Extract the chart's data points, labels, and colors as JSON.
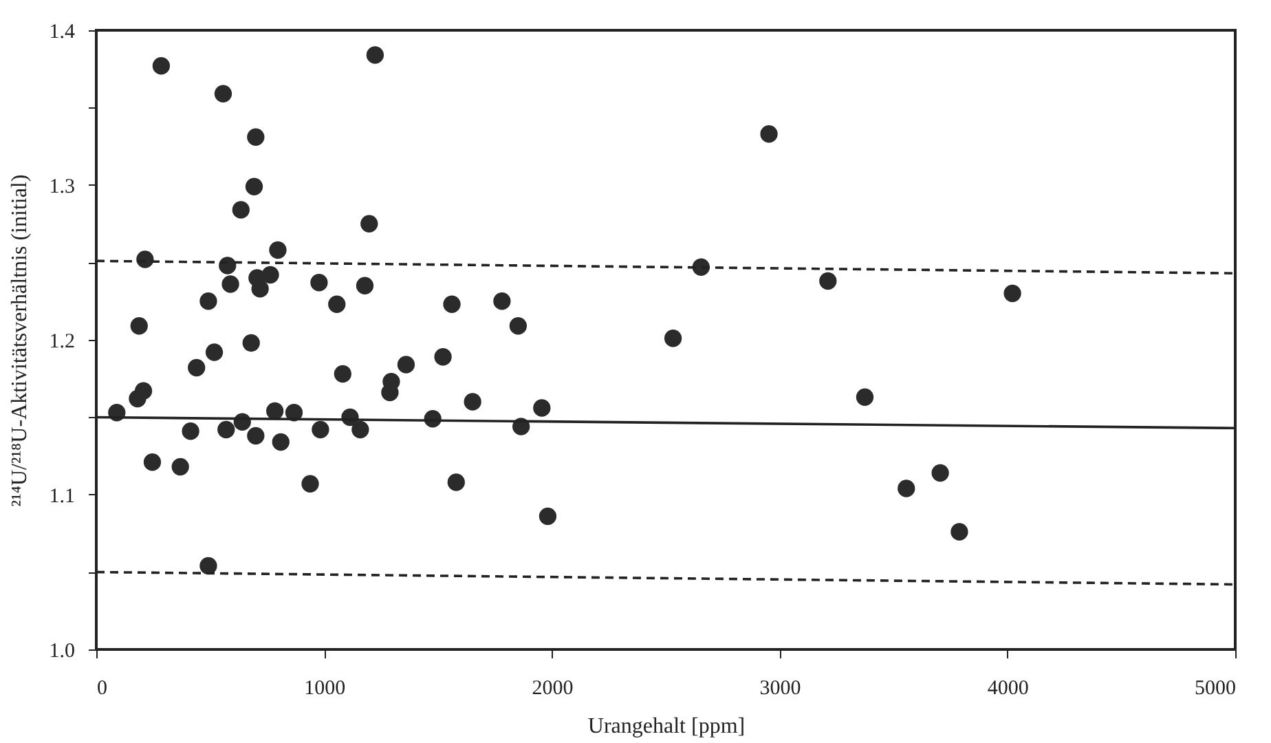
{
  "chart_data": {
    "type": "scatter",
    "xlabel": "Urangehalt [ppm]",
    "ylabel": "²¹⁴U/²¹⁸U-Aktivitätsverhältnis (initial)",
    "xlim": [
      0,
      5000
    ],
    "ylim": [
      1.0,
      1.4
    ],
    "xticks": [
      0,
      1000,
      2000,
      3000,
      4000,
      5000
    ],
    "yticks": [
      {
        "value": 1.0,
        "label": "1.0"
      },
      {
        "value": 1.05,
        "label": null
      },
      {
        "value": 1.1,
        "label": "1.1"
      },
      {
        "value": 1.15,
        "label": null
      },
      {
        "value": 1.2,
        "label": "1.2"
      },
      {
        "value": 1.25,
        "label": null
      },
      {
        "value": 1.3,
        "label": "1.3"
      },
      {
        "value": 1.35,
        "label": null
      },
      {
        "value": 1.4,
        "label": "1.4"
      }
    ],
    "marker": "circle",
    "series": [
      {
        "color": "#2b2b2b",
        "x": [
          90,
          181,
          207,
          188,
          285,
          214,
          246,
          369,
          414,
          440,
          518,
          680,
          492,
          570,
          641,
          700,
          810,
          784,
          868,
          984,
          939,
          1082,
          1114,
          1159,
          1289,
          1295,
          1360,
          1522,
          1477,
          1652,
          1580,
          1865,
          1956,
          1982,
          557,
          700,
          693,
          635,
          1224,
          1198,
          797,
          576,
          589,
          706,
          764,
          719,
          492,
          978,
          1056,
          1179,
          1561,
          1781,
          1852,
          2953,
          2655,
          3212,
          4022,
          2532,
          3374,
          3705,
          3556,
          3789
        ],
        "values": [
          1.153,
          1.162,
          1.167,
          1.209,
          1.377,
          1.252,
          1.121,
          1.118,
          1.141,
          1.182,
          1.192,
          1.198,
          1.054,
          1.142,
          1.147,
          1.138,
          1.134,
          1.154,
          1.153,
          1.142,
          1.107,
          1.178,
          1.15,
          1.142,
          1.166,
          1.173,
          1.184,
          1.189,
          1.149,
          1.16,
          1.108,
          1.144,
          1.156,
          1.086,
          1.359,
          1.331,
          1.299,
          1.284,
          1.384,
          1.275,
          1.258,
          1.248,
          1.236,
          1.24,
          1.242,
          1.233,
          1.225,
          1.237,
          1.223,
          1.235,
          1.223,
          1.225,
          1.209,
          1.333,
          1.247,
          1.238,
          1.23,
          1.201,
          1.163,
          1.114,
          1.104,
          1.076
        ]
      },
      {
        "type": "line",
        "color": "#222222",
        "line_style": "solid",
        "marker": "none",
        "x": [
          0,
          5000
        ],
        "values": [
          1.15,
          1.143
        ]
      },
      {
        "type": "line",
        "color": "#222222",
        "line_style": "dashed",
        "marker": "none",
        "x": [
          0,
          5000
        ],
        "values": [
          1.251,
          1.243
        ]
      },
      {
        "type": "line",
        "color": "#222222",
        "line_style": "dashed",
        "marker": "none",
        "x": [
          0,
          5000
        ],
        "values": [
          1.05,
          1.042
        ]
      }
    ]
  }
}
